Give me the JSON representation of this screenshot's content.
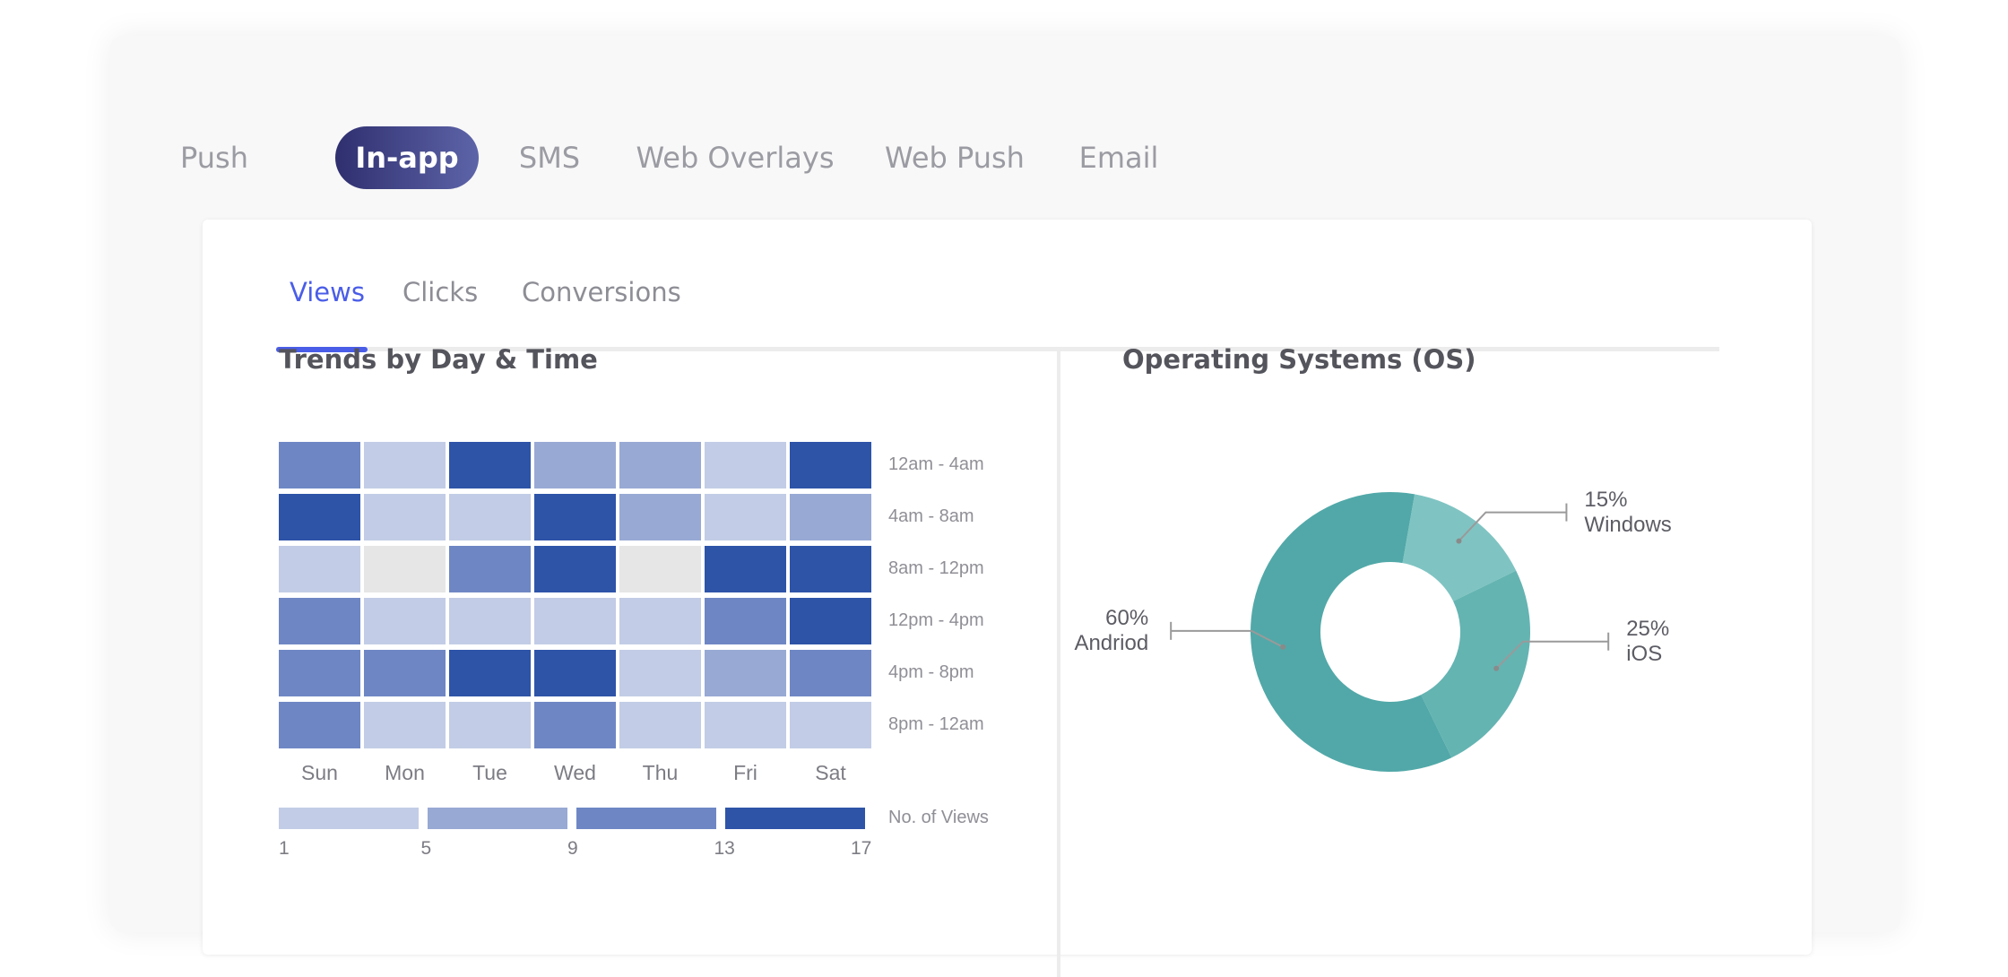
{
  "channels": {
    "tabs": [
      {
        "label": "Push",
        "active": false
      },
      {
        "label": "In-app",
        "active": true
      },
      {
        "label": "SMS",
        "active": false
      },
      {
        "label": "Web Overlays",
        "active": false
      },
      {
        "label": "Web Push",
        "active": false
      },
      {
        "label": "Email",
        "active": false
      }
    ],
    "accent_gradient": [
      "#2f2f6f",
      "#5d64a8"
    ]
  },
  "metrics": {
    "tabs": [
      {
        "label": "Views",
        "active": true
      },
      {
        "label": "Clicks",
        "active": false
      },
      {
        "label": "Conversions",
        "active": false
      }
    ],
    "accent": "#4a5de8"
  },
  "trends": {
    "title": "Trends by Day & Time"
  },
  "os": {
    "title": "Operating Systems (OS)"
  },
  "chart_data": [
    {
      "type": "heatmap",
      "title": "Trends by Day & Time",
      "days": [
        "Sun",
        "Mon",
        "Tue",
        "Wed",
        "Thu",
        "Fri",
        "Sat"
      ],
      "time_slots": [
        "12am - 4am",
        "4am - 8am",
        "8am - 12pm",
        "12pm - 4pm",
        "4pm - 8pm",
        "8pm - 12am"
      ],
      "levels": [
        [
          3,
          1,
          4,
          2,
          2,
          1,
          4
        ],
        [
          4,
          1,
          1,
          4,
          2,
          1,
          2
        ],
        [
          1,
          0,
          3,
          4,
          0,
          4,
          4
        ],
        [
          3,
          1,
          1,
          1,
          1,
          3,
          4
        ],
        [
          3,
          3,
          4,
          4,
          1,
          2,
          3
        ],
        [
          3,
          1,
          1,
          3,
          1,
          1,
          1
        ]
      ],
      "colors": [
        "#e6e6e6",
        "#c2cce6",
        "#98a9d4",
        "#6e87c4",
        "#2e54a8"
      ],
      "legend": {
        "title": "No. of Views",
        "ticks": [
          "1",
          "5",
          "9",
          "13",
          "17"
        ],
        "colors": [
          "#c2cce6",
          "#98a9d4",
          "#6e87c4",
          "#2e54a8"
        ]
      }
    },
    {
      "type": "pie",
      "variant": "donut",
      "title": "Operating Systems (OS)",
      "slices": [
        {
          "label": "Andriod",
          "value": 60,
          "display": "60%",
          "color": "#52a8a8"
        },
        {
          "label": "Windows",
          "value": 15,
          "display": "15%",
          "color": "#7fc4c2"
        },
        {
          "label": "iOS",
          "value": 25,
          "display": "25%",
          "color": "#64b4b2"
        }
      ]
    }
  ]
}
